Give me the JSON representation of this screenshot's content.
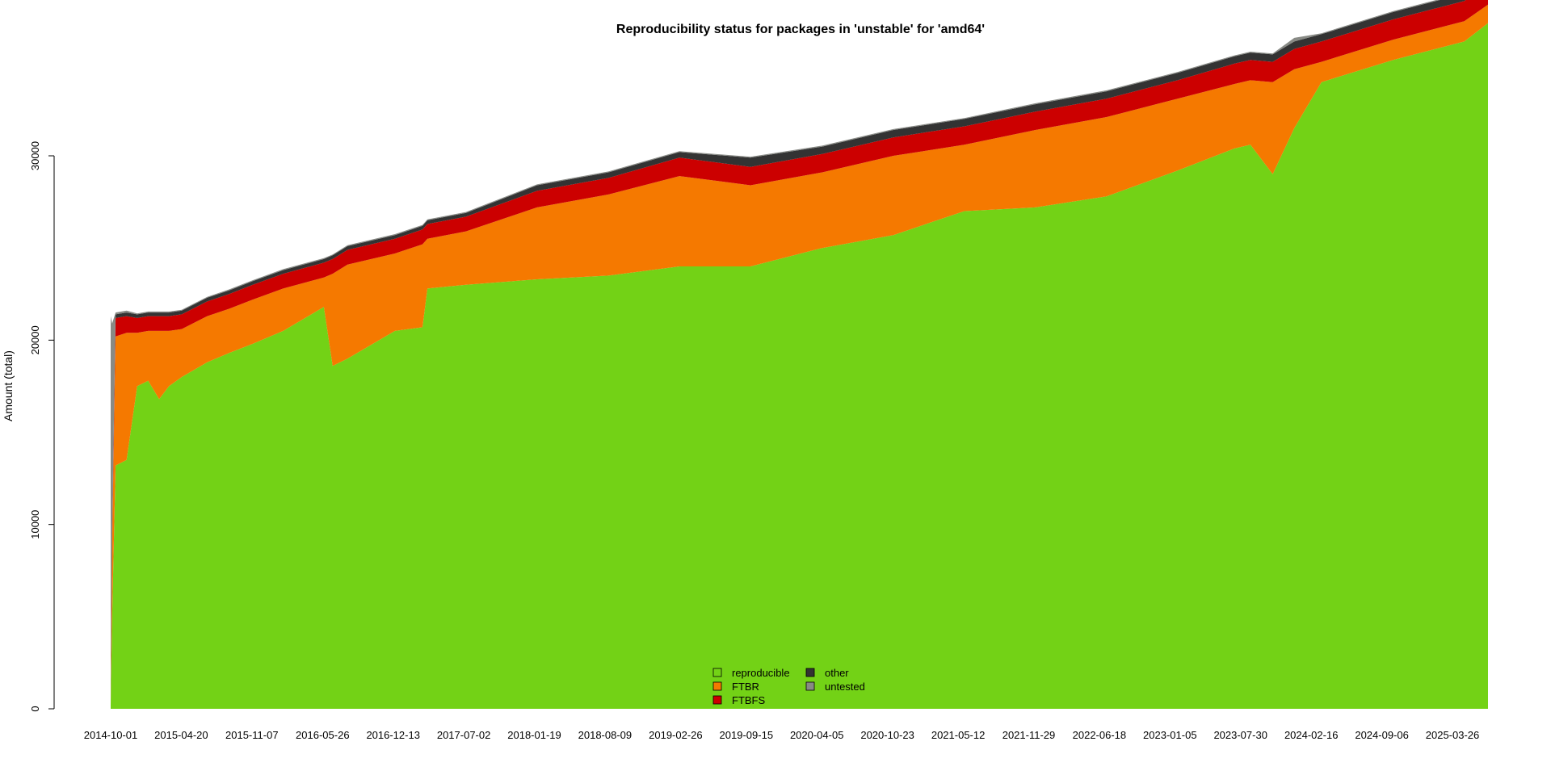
{
  "chart_data": {
    "type": "area",
    "title": "Reproducibility status for packages in 'unstable' for 'amd64'",
    "ylabel": "Amount (total)",
    "xlabel": "",
    "ylim": [
      0,
      36000
    ],
    "yticks": [
      0,
      10000,
      20000,
      30000
    ],
    "x_tick_labels": [
      "2014-10-01",
      "2015-04-20",
      "2015-11-07",
      "2016-05-26",
      "2016-12-13",
      "2017-07-02",
      "2018-01-19",
      "2018-08-09",
      "2019-02-26",
      "2019-09-15",
      "2020-04-05",
      "2020-10-23",
      "2021-05-12",
      "2021-11-29",
      "2022-06-18",
      "2023-01-05",
      "2023-07-30",
      "2024-02-16",
      "2024-09-06",
      "2025-03-26"
    ],
    "x": [
      "2014-10-01",
      "2014-10-05",
      "2014-10-15",
      "2014-11-15",
      "2014-12-15",
      "2015-01-15",
      "2015-02-15",
      "2015-03-15",
      "2015-04-20",
      "2015-07-01",
      "2015-09-01",
      "2015-11-07",
      "2016-02-01",
      "2016-05-26",
      "2016-06-20",
      "2016-08-01",
      "2016-12-13",
      "2017-03-01",
      "2017-03-15",
      "2017-07-02",
      "2018-01-19",
      "2018-08-09",
      "2019-02-26",
      "2019-09-15",
      "2020-04-05",
      "2020-10-23",
      "2021-05-12",
      "2021-11-29",
      "2022-06-18",
      "2023-01-05",
      "2023-06-15",
      "2023-07-30",
      "2023-10-01",
      "2023-12-01",
      "2024-02-16",
      "2024-09-06",
      "2025-03-26",
      "2025-06-01"
    ],
    "series": [
      {
        "name": "reproducible",
        "color": "#73d216",
        "values": [
          200,
          5000,
          13200,
          13500,
          17500,
          17800,
          16800,
          17500,
          18000,
          18800,
          19300,
          19800,
          20500,
          21800,
          18600,
          19000,
          20500,
          20700,
          22800,
          23000,
          23300,
          23500,
          24000,
          24000,
          25000,
          25700,
          27000,
          27200,
          27800,
          29200,
          30400,
          30600,
          29000,
          31500,
          34000,
          35200,
          36200,
          37200
        ]
      },
      {
        "name": "FTBR",
        "color": "#f57900",
        "values": [
          100,
          4000,
          7000,
          6900,
          2900,
          2700,
          3700,
          3000,
          2600,
          2500,
          2400,
          2400,
          2300,
          1600,
          5000,
          5100,
          4200,
          4500,
          2700,
          2900,
          3900,
          4400,
          4900,
          4400,
          4100,
          4300,
          3600,
          4200,
          4300,
          3900,
          3500,
          3500,
          5000,
          3200,
          1100,
          1100,
          1100,
          1000
        ]
      },
      {
        "name": "FTBFS",
        "color": "#cc0000",
        "values": [
          50,
          500,
          1000,
          900,
          800,
          800,
          800,
          800,
          800,
          800,
          800,
          800,
          800,
          800,
          800,
          800,
          800,
          800,
          800,
          800,
          900,
          900,
          1000,
          1000,
          1000,
          1000,
          1000,
          1000,
          1000,
          1000,
          1100,
          1100,
          1100,
          1100,
          1100,
          1100,
          1100,
          1100
        ]
      },
      {
        "name": "other",
        "color": "#333333",
        "values": [
          50,
          200,
          200,
          200,
          200,
          200,
          200,
          200,
          200,
          200,
          200,
          200,
          200,
          200,
          200,
          200,
          200,
          200,
          200,
          200,
          300,
          300,
          300,
          500,
          400,
          400,
          400,
          400,
          400,
          400,
          400,
          400,
          400,
          400,
          400,
          400,
          400,
          400
        ]
      },
      {
        "name": "untested",
        "color": "#888a85",
        "values": [
          20900,
          11200,
          100,
          100,
          50,
          50,
          50,
          50,
          50,
          50,
          50,
          50,
          50,
          50,
          50,
          50,
          50,
          50,
          50,
          50,
          50,
          50,
          50,
          50,
          50,
          50,
          50,
          50,
          50,
          50,
          50,
          50,
          50,
          200,
          50,
          50,
          50,
          50
        ]
      }
    ],
    "legend": {
      "placement": "bottom-center",
      "entries": [
        "reproducible",
        "FTBR",
        "FTBFS",
        "other",
        "untested"
      ]
    },
    "grid": false
  }
}
